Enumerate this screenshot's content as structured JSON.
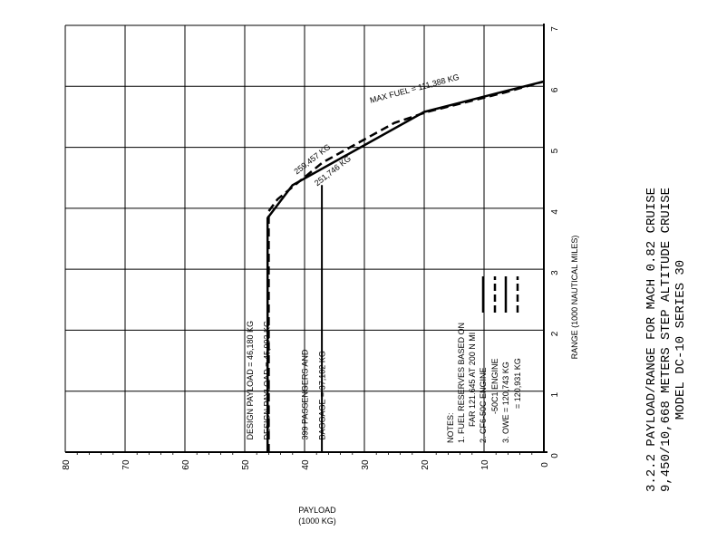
{
  "chart_data": {
    "type": "line",
    "orientation": "rotated 90 degrees counter-clockwise (range axis vertical, payload axis horizontal)",
    "caption": [
      "3.2.2  PAYLOAD/RANGE FOR MACH 0.82 CRUISE",
      "9,450/10,668 METERS STEP ALTITUDE CRUISE",
      "MODEL DC-10 SERIES 30"
    ],
    "xlabel": [
      "RANGE (1000 NAUTICAL MILES)"
    ],
    "ylabel": [
      "PAYLOAD",
      "(1000 KG)"
    ],
    "xlim": [
      0,
      7
    ],
    "ylim": [
      0,
      80
    ],
    "x_ticks": [
      "0",
      "1",
      "2",
      "3",
      "4",
      "5",
      "6",
      "7"
    ],
    "y_ticks": [
      "0",
      "10",
      "20",
      "30",
      "40",
      "50",
      "60",
      "70",
      "80"
    ],
    "grid": true,
    "series": [
      {
        "style": "solid",
        "x": [
          0,
          3.84,
          4.38,
          5.58,
          5.92,
          6.08
        ],
        "y": [
          46.18,
          46.18,
          42.0,
          20.0,
          6.5,
          0
        ]
      },
      {
        "style": "dashed",
        "x": [
          0,
          3.95,
          4.15,
          4.75,
          5.4,
          5.58,
          5.9,
          6.08
        ],
        "y": [
          45.993,
          45.993,
          44.5,
          37.0,
          25.0,
          19.5,
          6.5,
          0
        ]
      },
      {
        "style": "solid",
        "x": [
          0,
          4.38
        ],
        "y": [
          37.102,
          37.102
        ]
      }
    ],
    "annotations": [
      {
        "text": "MAX FUEL = 111,388 KG",
        "x": 5.92,
        "y": 21.5
      },
      {
        "text": "259,457 KG",
        "x": 4.55,
        "y": 41.3
      },
      {
        "text": "251,746 KG",
        "x": 4.36,
        "y": 37.9
      },
      {
        "text": "DESIGN PAYLOAD = 46,180 KG",
        "x": 0.2,
        "y": 48.6
      },
      {
        "text": "DESIGN PAYLOAD = 45,993 KG",
        "x": 0.2,
        "y": 45.8
      },
      {
        "text": "399 PASSENGERS AND",
        "x": 0.2,
        "y": 39.5
      },
      {
        "text": "BAGGAGE = 37,102 KG",
        "x": 0.2,
        "y": 36.6
      }
    ],
    "notes": {
      "title": "NOTES:",
      "lines": [
        "1.  FUEL RESERVES BASED ON",
        "FAR 121.645 AT 200 N MI",
        "2.  CF6-50C ENGINE",
        "-50C1 ENGINE",
        "3.  OWE = 120,743 KG",
        "= 120,931 KG"
      ]
    }
  }
}
